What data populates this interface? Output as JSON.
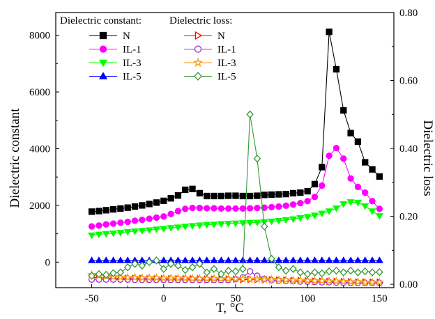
{
  "chart_data": {
    "type": "line",
    "xlabel": "T, °C",
    "ylabel_left": "Dielectric constant",
    "ylabel_right": "Dielectric loss",
    "xlim": [
      -75,
      160
    ],
    "ylim_left": [
      -900,
      8800
    ],
    "ylim_right": [
      -0.01,
      0.8
    ],
    "x_ticks": [
      -50,
      0,
      50,
      100,
      150
    ],
    "y_left_ticks": [
      0,
      2000,
      4000,
      6000,
      8000
    ],
    "y_right_ticks": [
      "0.00",
      "0.20",
      "0.40",
      "0.60",
      "0.80"
    ],
    "legend_headers": [
      "Dielectric constant:",
      "Dielectric loss:"
    ],
    "grid": false,
    "series": [
      {
        "name": "N",
        "axis": "left",
        "color": "#000000",
        "marker": "square",
        "filled": true,
        "x": [
          -50,
          -45,
          -40,
          -35,
          -30,
          -25,
          -20,
          -15,
          -10,
          -5,
          0,
          5,
          10,
          15,
          20,
          25,
          30,
          35,
          40,
          45,
          50,
          55,
          60,
          65,
          70,
          75,
          80,
          85,
          90,
          95,
          100,
          105,
          110,
          115,
          120,
          125,
          130,
          135,
          140,
          145,
          150
        ],
        "y": [
          1780,
          1800,
          1830,
          1860,
          1890,
          1920,
          1960,
          2000,
          2050,
          2100,
          2160,
          2250,
          2350,
          2550,
          2580,
          2430,
          2330,
          2330,
          2330,
          2340,
          2340,
          2330,
          2330,
          2340,
          2370,
          2380,
          2390,
          2400,
          2430,
          2450,
          2500,
          2750,
          3350,
          8120,
          6800,
          5350,
          4550,
          4250,
          3520,
          3270,
          3020
        ]
      },
      {
        "name": "IL-1",
        "axis": "left",
        "color": "#ff00ff",
        "marker": "circle",
        "filled": true,
        "x": [
          -50,
          -45,
          -40,
          -35,
          -30,
          -25,
          -20,
          -15,
          -10,
          -5,
          0,
          5,
          10,
          15,
          20,
          25,
          30,
          35,
          40,
          45,
          50,
          55,
          60,
          65,
          70,
          75,
          80,
          85,
          90,
          95,
          100,
          105,
          110,
          115,
          120,
          125,
          130,
          135,
          140,
          145,
          150
        ],
        "y": [
          1260,
          1290,
          1330,
          1360,
          1390,
          1420,
          1460,
          1490,
          1530,
          1570,
          1610,
          1700,
          1800,
          1880,
          1910,
          1910,
          1900,
          1900,
          1890,
          1890,
          1890,
          1890,
          1900,
          1910,
          1920,
          1940,
          1960,
          1990,
          2030,
          2080,
          2150,
          2300,
          2700,
          3750,
          4020,
          3650,
          2950,
          2650,
          2450,
          2150,
          1880
        ]
      },
      {
        "name": "IL-3",
        "axis": "left",
        "color": "#00ff00",
        "marker": "triangle-down",
        "filled": true,
        "x": [
          -50,
          -45,
          -40,
          -35,
          -30,
          -25,
          -20,
          -15,
          -10,
          -5,
          0,
          5,
          10,
          15,
          20,
          25,
          30,
          35,
          40,
          45,
          50,
          55,
          60,
          65,
          70,
          75,
          80,
          85,
          90,
          95,
          100,
          105,
          110,
          115,
          120,
          125,
          130,
          135,
          140,
          145,
          150
        ],
        "y": [
          950,
          980,
          1000,
          1020,
          1040,
          1070,
          1090,
          1110,
          1130,
          1160,
          1180,
          1210,
          1230,
          1260,
          1280,
          1300,
          1320,
          1330,
          1350,
          1360,
          1370,
          1380,
          1390,
          1400,
          1420,
          1440,
          1460,
          1490,
          1520,
          1560,
          1600,
          1650,
          1720,
          1800,
          1900,
          2050,
          2120,
          2100,
          1980,
          1800,
          1630
        ]
      },
      {
        "name": "IL-5",
        "axis": "left",
        "color": "#0000ff",
        "marker": "triangle-up",
        "filled": true,
        "x": [
          -50,
          -45,
          -40,
          -35,
          -30,
          -25,
          -20,
          -15,
          -10,
          -5,
          0,
          5,
          10,
          15,
          20,
          25,
          30,
          35,
          40,
          45,
          50,
          55,
          60,
          65,
          70,
          75,
          80,
          85,
          90,
          95,
          100,
          105,
          110,
          115,
          120,
          125,
          130,
          135,
          140,
          145,
          150
        ],
        "y": [
          60,
          60,
          60,
          60,
          60,
          60,
          60,
          60,
          60,
          60,
          60,
          60,
          60,
          60,
          60,
          60,
          60,
          60,
          60,
          60,
          60,
          60,
          60,
          60,
          60,
          60,
          60,
          60,
          60,
          60,
          60,
          60,
          60,
          60,
          60,
          60,
          60,
          60,
          60,
          60,
          60
        ]
      },
      {
        "name": "N",
        "axis": "right",
        "color": "#ff0000",
        "marker": "triangle-right",
        "filled": false,
        "x": [
          -50,
          -45,
          -40,
          -35,
          -30,
          -25,
          -20,
          -15,
          -10,
          -5,
          0,
          5,
          10,
          15,
          20,
          25,
          30,
          35,
          40,
          45,
          50,
          55,
          60,
          65,
          70,
          75,
          80,
          85,
          90,
          95,
          100,
          105,
          110,
          115,
          120,
          125,
          130,
          135,
          140,
          145,
          150
        ],
        "y": [
          0.02,
          0.019,
          0.018,
          0.018,
          0.017,
          0.017,
          0.017,
          0.017,
          0.016,
          0.016,
          0.016,
          0.016,
          0.016,
          0.016,
          0.016,
          0.016,
          0.015,
          0.015,
          0.015,
          0.015,
          0.015,
          0.014,
          0.014,
          0.014,
          0.013,
          0.013,
          0.012,
          0.012,
          0.011,
          0.011,
          0.01,
          0.009,
          0.009,
          0.008,
          0.008,
          0.007,
          0.007,
          0.006,
          0.006,
          0.006,
          0.006
        ]
      },
      {
        "name": "IL-1",
        "axis": "right",
        "color": "#9933cc",
        "marker": "circle",
        "filled": false,
        "x": [
          -50,
          -45,
          -40,
          -35,
          -30,
          -25,
          -20,
          -15,
          -10,
          -5,
          0,
          5,
          10,
          15,
          20,
          25,
          30,
          35,
          40,
          45,
          50,
          55,
          60,
          65,
          70,
          75,
          80,
          85,
          90,
          95,
          100,
          105,
          110,
          115,
          120,
          125,
          130,
          135,
          140,
          145,
          150
        ],
        "y": [
          0.014,
          0.014,
          0.014,
          0.014,
          0.014,
          0.014,
          0.013,
          0.013,
          0.013,
          0.013,
          0.013,
          0.013,
          0.013,
          0.013,
          0.013,
          0.013,
          0.013,
          0.013,
          0.013,
          0.013,
          0.015,
          0.02,
          0.038,
          0.025,
          0.016,
          0.012,
          0.011,
          0.01,
          0.009,
          0.008,
          0.008,
          0.007,
          0.006,
          0.006,
          0.005,
          0.005,
          0.004,
          0.004,
          0.004,
          0.004,
          0.004
        ]
      },
      {
        "name": "IL-3",
        "axis": "right",
        "color": "#ff9900",
        "marker": "star",
        "filled": false,
        "x": [
          -50,
          -45,
          -40,
          -35,
          -30,
          -25,
          -20,
          -15,
          -10,
          -5,
          0,
          5,
          10,
          15,
          20,
          25,
          30,
          35,
          40,
          45,
          50,
          55,
          60,
          65,
          70,
          75,
          80,
          85,
          90,
          95,
          100,
          105,
          110,
          115,
          120,
          125,
          130,
          135,
          140,
          145,
          150
        ],
        "y": [
          0.028,
          0.026,
          0.024,
          0.022,
          0.021,
          0.02,
          0.02,
          0.019,
          0.019,
          0.019,
          0.018,
          0.018,
          0.018,
          0.018,
          0.017,
          0.017,
          0.017,
          0.017,
          0.016,
          0.016,
          0.016,
          0.016,
          0.015,
          0.015,
          0.014,
          0.014,
          0.013,
          0.013,
          0.012,
          0.012,
          0.011,
          0.01,
          0.01,
          0.009,
          0.009,
          0.008,
          0.007,
          0.007,
          0.006,
          0.006,
          0.006
        ]
      },
      {
        "name": "IL-5",
        "axis": "right",
        "color": "#339933",
        "marker": "diamond",
        "filled": false,
        "x": [
          -50,
          -45,
          -40,
          -35,
          -30,
          -25,
          -20,
          -15,
          -10,
          -5,
          0,
          5,
          10,
          15,
          20,
          25,
          30,
          35,
          40,
          45,
          50,
          55,
          60,
          65,
          70,
          75,
          80,
          85,
          90,
          95,
          100,
          105,
          110,
          115,
          120,
          125,
          130,
          135,
          140,
          145,
          150
        ],
        "y": [
          0.025,
          0.03,
          0.028,
          0.033,
          0.035,
          0.05,
          0.06,
          0.055,
          0.065,
          0.07,
          0.045,
          0.06,
          0.055,
          0.042,
          0.05,
          0.06,
          0.035,
          0.045,
          0.03,
          0.04,
          0.038,
          0.045,
          0.5,
          0.37,
          0.17,
          0.075,
          0.05,
          0.04,
          0.045,
          0.035,
          0.03,
          0.035,
          0.032,
          0.038,
          0.04,
          0.035,
          0.04,
          0.035,
          0.038,
          0.035,
          0.036
        ]
      }
    ]
  }
}
